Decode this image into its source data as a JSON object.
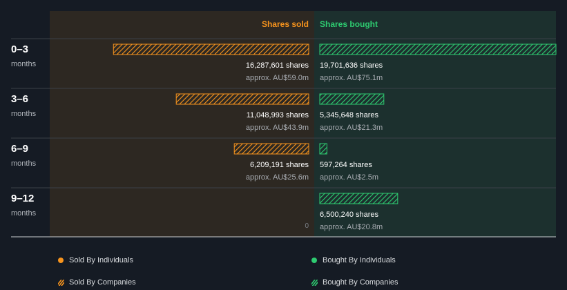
{
  "colors": {
    "background": "#151b24",
    "sold_panel": "#2d2822",
    "bought_panel": "#1c302e",
    "sold": "#f7941d",
    "bought": "#2ecc71"
  },
  "chart_data": {
    "type": "bar",
    "orientation": "horizontal-diverging",
    "headers": {
      "sold": "Shares sold",
      "bought": "Shares bought"
    },
    "unit_suffix": " shares",
    "categories": [
      {
        "label": "0–3",
        "sub": "months"
      },
      {
        "label": "3–6",
        "sub": "months"
      },
      {
        "label": "6–9",
        "sub": "months"
      },
      {
        "label": "9–12",
        "sub": "months"
      }
    ],
    "series": [
      {
        "name": "Shares sold",
        "values": [
          16287601,
          11048993,
          6209191,
          0
        ],
        "value_labels": [
          "16,287,601 shares",
          "11,048,993 shares",
          "6,209,191 shares",
          "0"
        ],
        "approx_labels": [
          "approx. AU$59.0m",
          "approx. AU$43.9m",
          "approx. AU$25.6m",
          ""
        ]
      },
      {
        "name": "Shares bought",
        "values": [
          19701636,
          5345648,
          597264,
          6500240
        ],
        "value_labels": [
          "19,701,636 shares",
          "5,345,648 shares",
          "597,264 shares",
          "6,500,240 shares"
        ],
        "approx_labels": [
          "approx. AU$75.1m",
          "approx. AU$21.3m",
          "approx. AU$2.5m",
          "approx. AU$20.8m"
        ]
      }
    ],
    "xlim": [
      0,
      19701636
    ],
    "legend_position": "bottom",
    "legend": [
      {
        "label": "Sold By Individuals",
        "style": "dot",
        "color_key": "sold"
      },
      {
        "label": "Sold By Companies",
        "style": "hatch",
        "color_key": "sold"
      },
      {
        "label": "Bought By Individuals",
        "style": "dot",
        "color_key": "bought"
      },
      {
        "label": "Bought By Companies",
        "style": "hatch",
        "color_key": "bought"
      }
    ]
  }
}
